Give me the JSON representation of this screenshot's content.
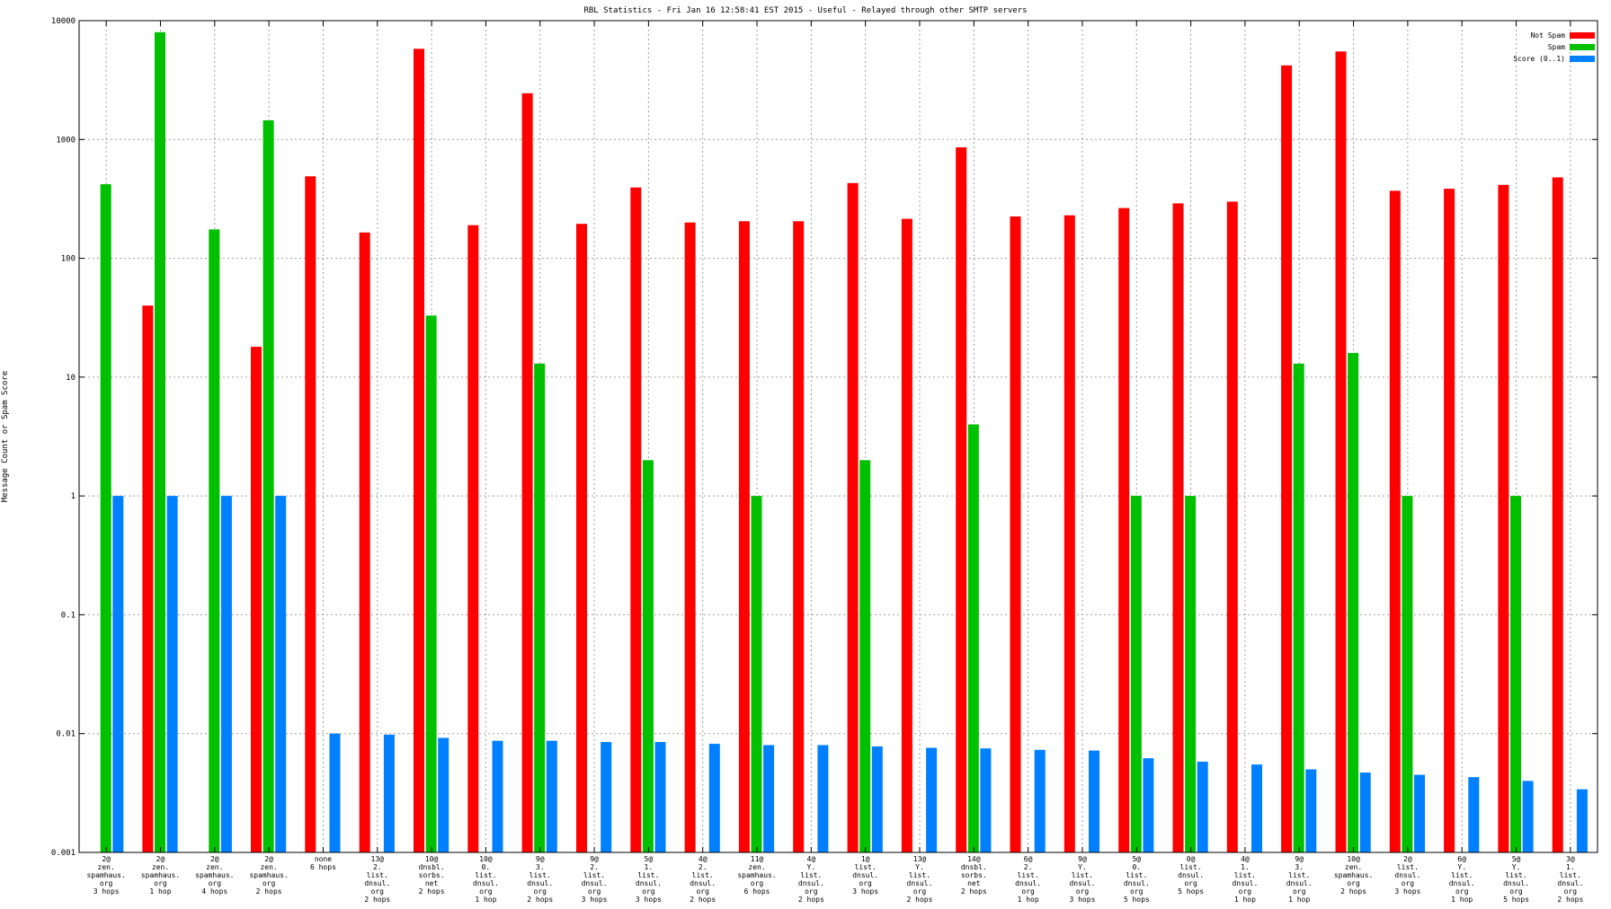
{
  "chart_data": {
    "type": "bar",
    "title": "RBL Statistics - Fri Jan 16 12:58:41 EST 2015 - Useful - Relayed through other SMTP servers",
    "ylabel": "Message Count or Spam Score",
    "xlabel": "",
    "yscale": "log",
    "ylim": [
      0.001,
      10000
    ],
    "grid": true,
    "legend_position": "top-right",
    "y_ticks": [
      "0.001",
      "0.01",
      "0.1",
      "1",
      "10",
      "100",
      "1000",
      "10000"
    ],
    "categories": [
      [
        "2@",
        "zen.",
        "spamhaus.",
        "org",
        "3 hops"
      ],
      [
        "2@",
        "zen.",
        "spamhaus.",
        "org",
        "1 hop"
      ],
      [
        "2@",
        "zen.",
        "spamhaus.",
        "org",
        "4 hops"
      ],
      [
        "2@",
        "zen.",
        "spamhaus.",
        "org",
        "2 hops"
      ],
      [
        "none",
        "6 hops"
      ],
      [
        "13@",
        "2.",
        "list.",
        "dnsul.",
        "org",
        "2 hops"
      ],
      [
        "10@",
        "dnsbl.",
        "sorbs.",
        "net",
        "2 hops"
      ],
      [
        "10@",
        "0.",
        "list.",
        "dnsul.",
        "org",
        "1 hop"
      ],
      [
        "9@",
        "3.",
        "list.",
        "dnsul.",
        "org",
        "2 hops"
      ],
      [
        "9@",
        "2.",
        "list.",
        "dnsul.",
        "org",
        "3 hops"
      ],
      [
        "5@",
        "1.",
        "list.",
        "dnsul.",
        "org",
        "3 hops"
      ],
      [
        "4@",
        "2.",
        "list.",
        "dnsul.",
        "org",
        "2 hops"
      ],
      [
        "11@",
        "zen.",
        "spamhaus.",
        "org",
        "6 hops"
      ],
      [
        "4@",
        "Y.",
        "list.",
        "dnsul.",
        "org",
        "2 hops"
      ],
      [
        "1@",
        "list.",
        "dnsul.",
        "org",
        "3 hops"
      ],
      [
        "13@",
        "Y.",
        "list.",
        "dnsul.",
        "org",
        "2 hops"
      ],
      [
        "14@",
        "dnsbl.",
        "sorbs.",
        "net",
        "2 hops"
      ],
      [
        "6@",
        "2.",
        "list.",
        "dnsul.",
        "org",
        "1 hop"
      ],
      [
        "9@",
        "Y.",
        "list.",
        "dnsul.",
        "org",
        "3 hops"
      ],
      [
        "5@",
        "0.",
        "list.",
        "dnsul.",
        "org",
        "5 hops"
      ],
      [
        "0@",
        "list.",
        "dnsul.",
        "org",
        "5 hops"
      ],
      [
        "4@",
        "1.",
        "list.",
        "dnsul.",
        "org",
        "1 hop"
      ],
      [
        "9@",
        "3.",
        "list.",
        "dnsul.",
        "org",
        "1 hop"
      ],
      [
        "10@",
        "zen.",
        "spamhaus.",
        "org",
        "2 hops"
      ],
      [
        "2@",
        "list.",
        "dnsul.",
        "org",
        "3 hops"
      ],
      [
        "6@",
        "Y.",
        "list.",
        "dnsul.",
        "org",
        "1 hop"
      ],
      [
        "5@",
        "Y.",
        "list.",
        "dnsul.",
        "org",
        "5 hops"
      ],
      [
        "3@",
        "1.",
        "list.",
        "dnsul.",
        "org",
        "2 hops"
      ]
    ],
    "series": [
      {
        "name": "Not Spam",
        "color": "#ff0000",
        "values": [
          null,
          40,
          null,
          18,
          490,
          165,
          5800,
          190,
          2450,
          195,
          395,
          200,
          205,
          205,
          430,
          215,
          860,
          225,
          230,
          265,
          290,
          300,
          4200,
          5500,
          370,
          385,
          415,
          480
        ]
      },
      {
        "name": "Spam",
        "color": "#00c000",
        "values": [
          420,
          8000,
          175,
          1450,
          null,
          null,
          33,
          null,
          13,
          null,
          2,
          null,
          1,
          null,
          2,
          null,
          4,
          null,
          null,
          1,
          1,
          null,
          13,
          16,
          1,
          null,
          1,
          null
        ]
      },
      {
        "name": "Score (0..1)",
        "color": "#0080ff",
        "values": [
          1,
          1,
          1,
          1,
          0.01,
          0.0098,
          0.0092,
          0.0087,
          0.0087,
          0.0085,
          0.0085,
          0.0082,
          0.008,
          0.008,
          0.0078,
          0.0076,
          0.0075,
          0.0073,
          0.0072,
          0.0062,
          0.0058,
          0.0055,
          0.005,
          0.0047,
          0.0045,
          0.0043,
          0.004,
          0.0034
        ]
      }
    ]
  }
}
